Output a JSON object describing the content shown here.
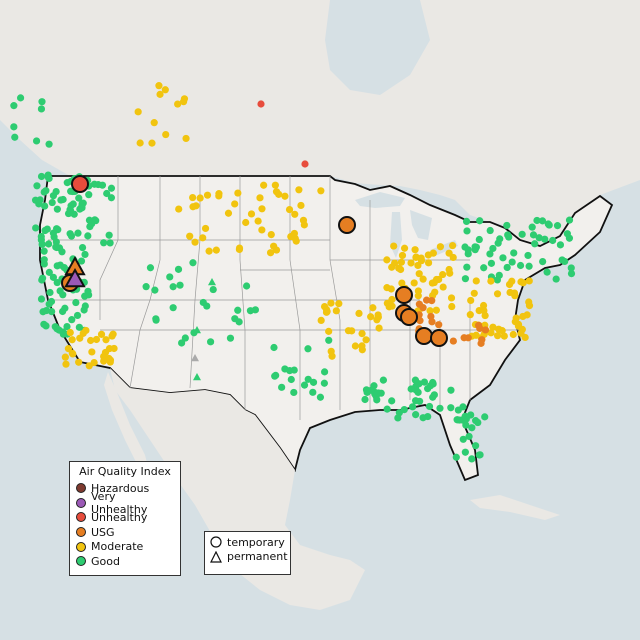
{
  "legend": {
    "title": "Air Quality Index",
    "categories": [
      {
        "label": "Hazardous",
        "color": "#7e3a2f"
      },
      {
        "label": "Very Unhealthy",
        "color": "#9b59b6"
      },
      {
        "label": "Unhealthy",
        "color": "#e74c3c"
      },
      {
        "label": "USG",
        "color": "#e67e22"
      },
      {
        "label": "Moderate",
        "color": "#f1c40f"
      },
      {
        "label": "Good",
        "color": "#2ecc71"
      }
    ]
  },
  "shape_legend": {
    "temporary": "temporary",
    "permanent": "permanent"
  },
  "colors": {
    "water": "#d6e0e4",
    "land": "#eae8e4",
    "us_land": "#f2f0ed",
    "border": "#111111",
    "state_lines": "#9a9a9a"
  }
}
